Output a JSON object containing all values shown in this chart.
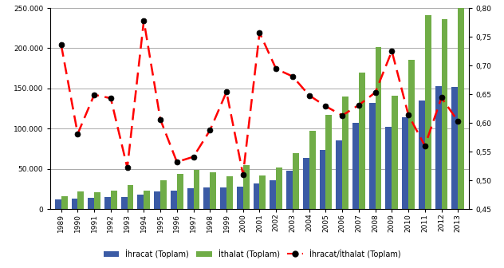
{
  "years": [
    1989,
    1990,
    1991,
    1992,
    1993,
    1994,
    1995,
    1996,
    1997,
    1998,
    1999,
    2000,
    2001,
    2002,
    2003,
    2004,
    2005,
    2006,
    2007,
    2008,
    2009,
    2010,
    2011,
    2012,
    2013
  ],
  "ihracat": [
    11625,
    12959,
    13667,
    14715,
    15345,
    18106,
    21637,
    23224,
    26261,
    26974,
    26587,
    27775,
    31334,
    35761,
    47253,
    63167,
    73476,
    85535,
    107272,
    132027,
    102143,
    113883,
    134907,
    152462,
    151803
  ],
  "ithalat": [
    15792,
    22302,
    21047,
    22871,
    29428,
    23270,
    35709,
    43627,
    48559,
    45921,
    40671,
    54503,
    41399,
    51554,
    69340,
    97540,
    116774,
    139576,
    170063,
    201964,
    140928,
    185544,
    240842,
    236545,
    251661
  ],
  "ratio": [
    0.736,
    0.581,
    0.649,
    0.643,
    0.522,
    0.778,
    0.606,
    0.532,
    0.541,
    0.587,
    0.654,
    0.51,
    0.757,
    0.694,
    0.681,
    0.648,
    0.629,
    0.613,
    0.631,
    0.653,
    0.725,
    0.614,
    0.56,
    0.644,
    0.603
  ],
  "bar_color_ihracat": "#3B5BA5",
  "bar_color_ithalat": "#70AD47",
  "line_color": "#FF0000",
  "marker_color": "#000000",
  "ylim_left": [
    0,
    250000
  ],
  "ylim_right": [
    0.45,
    0.8
  ],
  "yticks_left": [
    0,
    50000,
    100000,
    150000,
    200000,
    250000
  ],
  "yticks_right": [
    0.45,
    0.5,
    0.55,
    0.6,
    0.65,
    0.7,
    0.75,
    0.8
  ],
  "legend_labels": [
    "İhracat (Toplam)",
    "İthalat (Toplam)",
    "İhracat/İthalat (Toplam)"
  ],
  "figsize": [
    6.32,
    3.36
  ],
  "dpi": 100,
  "bar_width": 0.38,
  "fontsize_tick": 6.5,
  "fontsize_legend": 7,
  "grid_color": "#888888",
  "bg_color": "#FFFFFF"
}
